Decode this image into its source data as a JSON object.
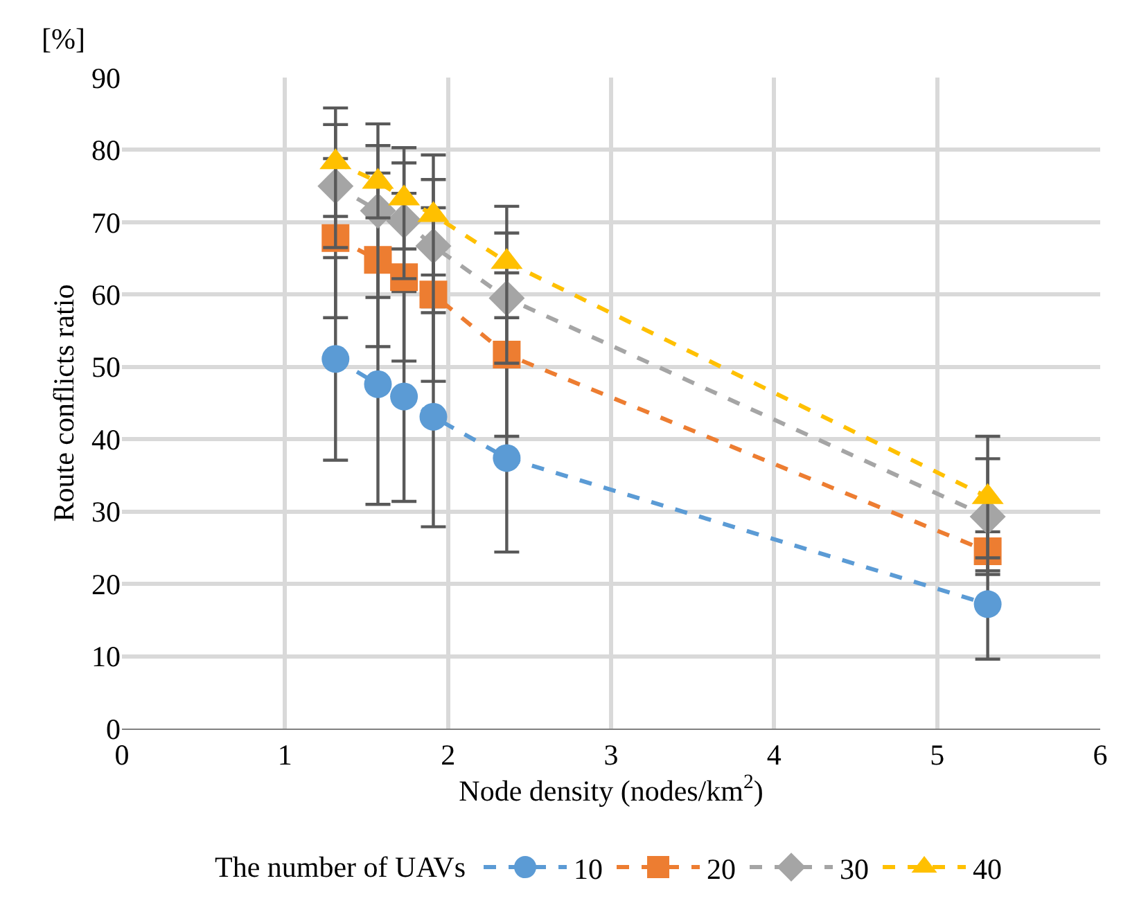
{
  "chart_data": {
    "type": "line",
    "xlabel": "Node density (nodes/km$^{2}$)",
    "ylabel": "Route conflicts ratio",
    "legend_title": "The number of UAVs",
    "annotations": [
      "[%]"
    ],
    "x": [
      1.31,
      1.57,
      1.73,
      1.91,
      2.36,
      5.31
    ],
    "series": [
      {
        "name": "10",
        "color": "#5b9bd5",
        "marker": "circle",
        "values": [
          51.1,
          47.6,
          45.9,
          43.1,
          37.4,
          17.2
        ],
        "errors": [
          14,
          16.6,
          14.5,
          15.2,
          13,
          7.6
        ]
      },
      {
        "name": "20",
        "color": "#ed7d31",
        "marker": "square",
        "values": [
          67.8,
          64.8,
          62.4,
          60,
          51.7,
          24.5
        ],
        "errors": [
          11,
          12,
          11.6,
          12,
          11.3,
          2.7
        ]
      },
      {
        "name": "30",
        "color": "#a5a5a5",
        "marker": "diamond",
        "values": [
          75,
          71.6,
          70.2,
          66.7,
          59.5,
          29.3
        ],
        "errors": [
          8.5,
          12,
          8,
          9.2,
          9,
          8
        ]
      },
      {
        "name": "40",
        "color": "#ffc000",
        "marker": "triangle",
        "values": [
          78.3,
          75.6,
          73.3,
          71,
          64.5,
          32
        ],
        "errors": [
          7.5,
          5,
          7,
          8.3,
          7.7,
          8.4
        ]
      }
    ],
    "line_style": "dashed",
    "xlim": [
      0,
      6
    ],
    "xticks": [
      0,
      1,
      2,
      3,
      4,
      5,
      6
    ],
    "ylim": [
      0,
      90
    ],
    "yticks": [
      0,
      10,
      20,
      30,
      40,
      50,
      60,
      70,
      80,
      90
    ],
    "grid": true,
    "legend": "bottom"
  }
}
